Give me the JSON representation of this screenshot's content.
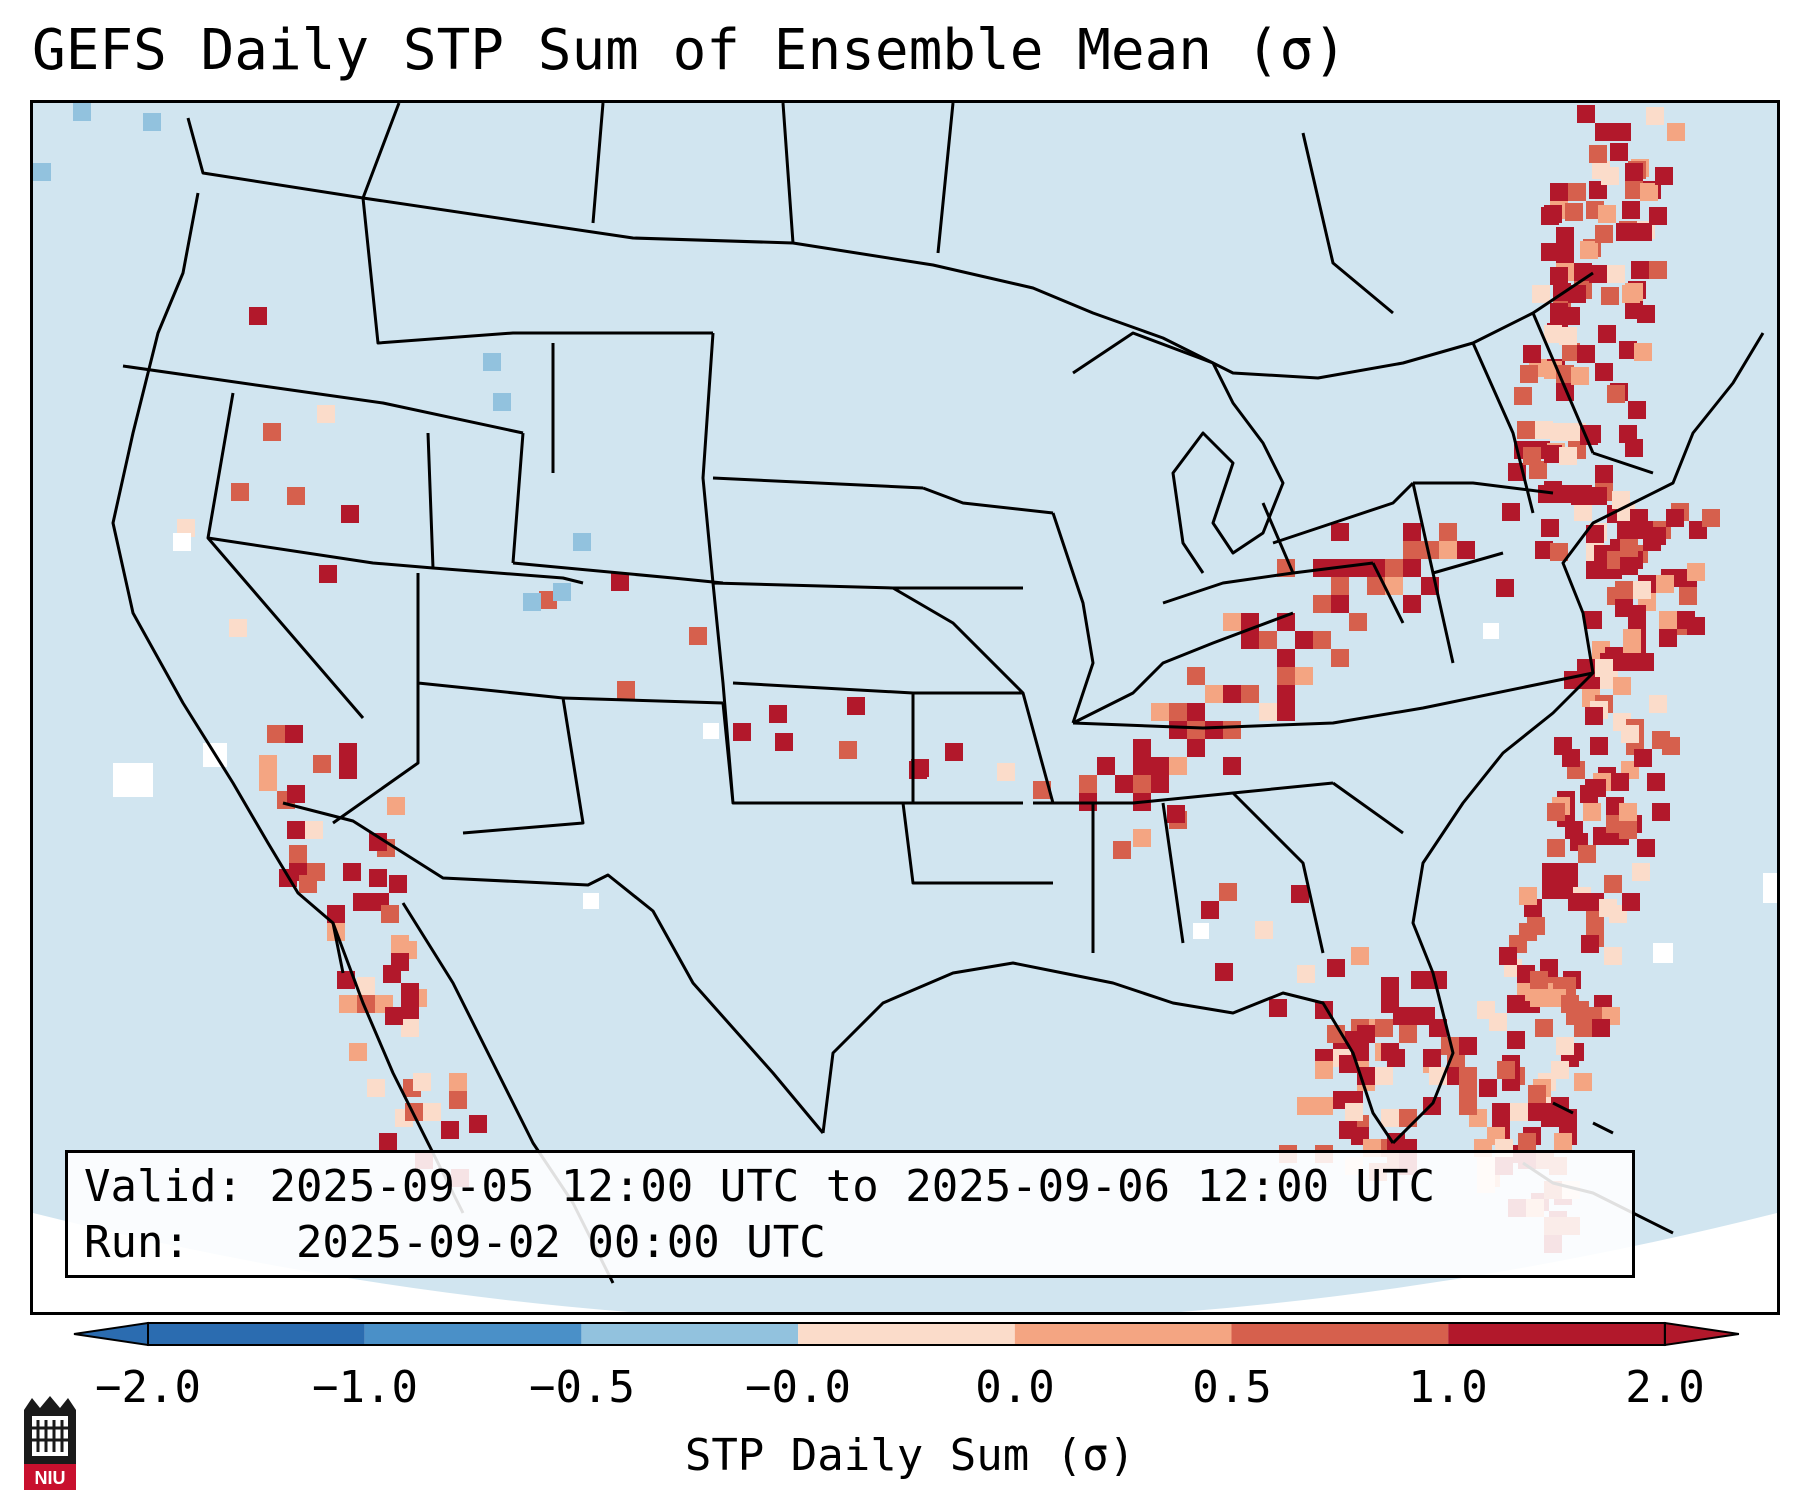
{
  "title": "GEFS Daily STP Sum of Ensemble Mean (σ)",
  "info": {
    "valid_label": "Valid:",
    "valid_value": "2025-09-05 12:00 UTC to 2025-09-06 12:00 UTC",
    "run_label": "Run:",
    "run_value": "2025-09-02 00:00 UTC"
  },
  "colorbar": {
    "label": "STP Daily Sum (σ)",
    "ticks": [
      "−2.0",
      "−1.0",
      "−0.5",
      "−0.0",
      "0.0",
      "0.5",
      "1.0",
      "2.0"
    ],
    "colors": [
      "#2b6cb0",
      "#4a90c8",
      "#92c2de",
      "#d1e5f0",
      "#fbdcca",
      "#f4a582",
      "#d6604d",
      "#b2182b"
    ],
    "extend": "both"
  },
  "logo": {
    "text": "NIU"
  },
  "map_colors": {
    "background": "#d1e5f0",
    "outline": "#000000",
    "missing": "#ffffff"
  }
}
